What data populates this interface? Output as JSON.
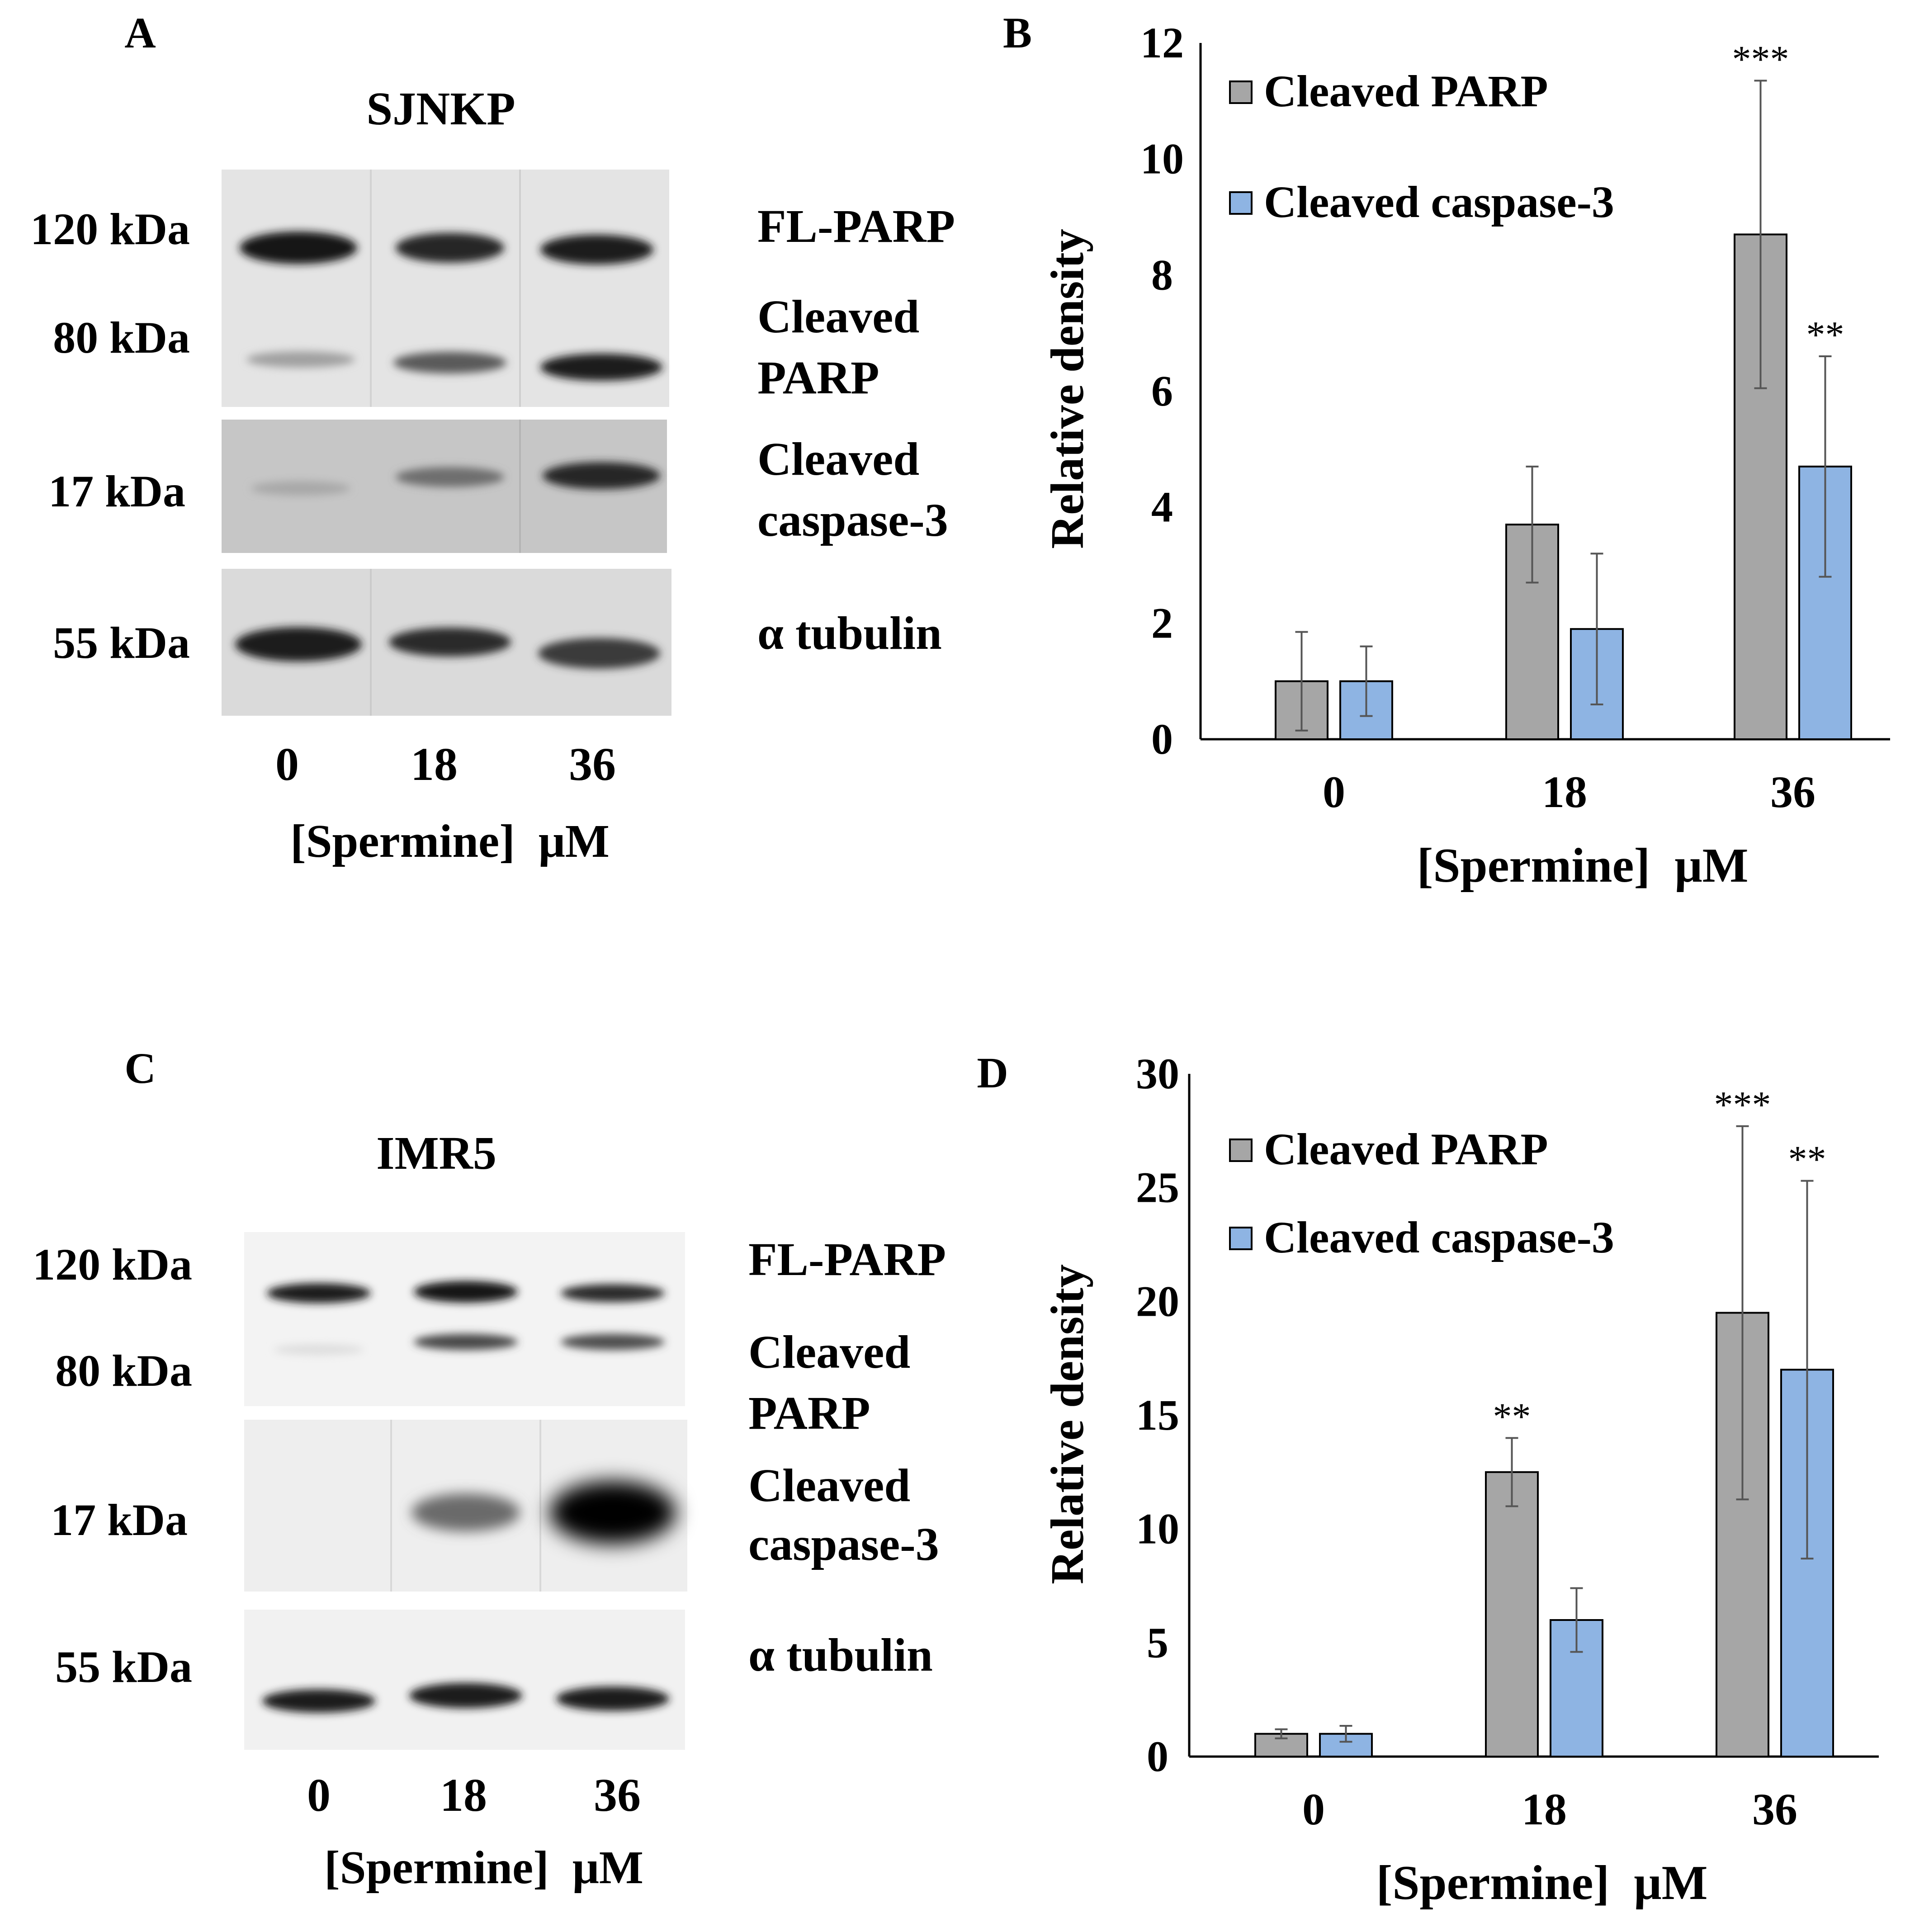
{
  "panel_a": {
    "letter": "A",
    "cell_line": "SJNKP",
    "markers": [
      "120 kDa",
      "80 kDa",
      "17 kDa",
      "55 kDa"
    ],
    "proteins": [
      "FL-PARP",
      "Cleaved",
      "PARP",
      "Cleaved",
      "caspase-3",
      "α tubulin"
    ],
    "lanes": [
      "0",
      "18",
      "36"
    ],
    "xlabel": "[Spermine]  μM"
  },
  "panel_c": {
    "letter": "C",
    "cell_line": "IMR5",
    "markers": [
      "120 kDa",
      "80 kDa",
      "17 kDa",
      "55 kDa"
    ],
    "proteins": [
      "FL-PARP",
      "Cleaved",
      "PARP",
      "Cleaved",
      "caspase-3",
      "α tubulin"
    ],
    "lanes": [
      "0",
      "18",
      "36"
    ],
    "xlabel": "[Spermine]  μM"
  },
  "chart_data": [
    {
      "panel": "B",
      "type": "bar",
      "categories": [
        "0",
        "18",
        "36"
      ],
      "series": [
        {
          "name": "Cleaved PARP",
          "color": "#a6a6a6",
          "values": [
            1.0,
            3.7,
            8.7
          ],
          "errors": [
            0.85,
            1.0,
            2.65
          ],
          "significance": [
            "",
            "",
            "***"
          ]
        },
        {
          "name": "Cleaved caspase-3",
          "color": "#8eb4e3",
          "values": [
            1.0,
            1.9,
            4.7
          ],
          "errors": [
            0.6,
            1.3,
            1.9
          ],
          "significance": [
            "",
            "",
            "**"
          ]
        }
      ],
      "ylim": [
        0,
        12
      ],
      "yticks": [
        0,
        2,
        4,
        6,
        8,
        10,
        12
      ],
      "xlabel": "[Spermine]  μM",
      "ylabel": "Relative density",
      "legend": "top-left",
      "grid": false
    },
    {
      "panel": "D",
      "type": "bar",
      "categories": [
        "0",
        "18",
        "36"
      ],
      "series": [
        {
          "name": "Cleaved PARP",
          "color": "#a6a6a6",
          "values": [
            1.0,
            12.5,
            19.5
          ],
          "errors": [
            0.2,
            1.5,
            8.2
          ],
          "significance": [
            "",
            "**",
            "***"
          ]
        },
        {
          "name": "Cleaved caspase-3",
          "color": "#8eb4e3",
          "values": [
            1.0,
            6.0,
            17.0
          ],
          "errors": [
            0.35,
            1.4,
            8.3
          ],
          "significance": [
            "",
            "",
            "**"
          ]
        }
      ],
      "ylim": [
        0,
        30
      ],
      "yticks": [
        0,
        5,
        10,
        15,
        20,
        25,
        30
      ],
      "xlabel": "[Spermine]  μM",
      "ylabel": "Relative density",
      "legend": "top-left",
      "grid": false
    }
  ]
}
